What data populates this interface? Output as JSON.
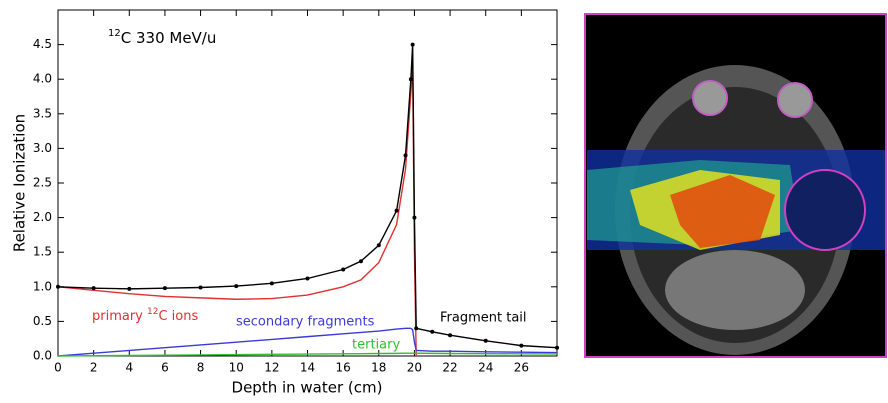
{
  "chart_data": {
    "type": "line",
    "title": {
      "sup": "12",
      "text": "C   330  MeV/u"
    },
    "x_label": "Depth in water (cm)",
    "y_label": "Relative Ionization",
    "x": [
      0,
      2,
      4,
      6,
      8,
      10,
      12,
      14,
      16,
      17,
      18,
      19,
      19.5,
      19.8,
      19.9,
      20.0,
      20.1,
      21,
      22,
      24,
      26,
      28
    ],
    "series": [
      {
        "name": "primary",
        "label": {
          "pre": "primary ",
          "sup": "12",
          "text": "C ions"
        },
        "color": "#e03030",
        "values": [
          1.0,
          0.95,
          0.9,
          0.86,
          0.84,
          0.82,
          0.83,
          0.88,
          1.0,
          1.1,
          1.35,
          1.9,
          2.7,
          3.8,
          4.2,
          1.5,
          0,
          null,
          null,
          null,
          null,
          null
        ]
      },
      {
        "name": "secondary fragments",
        "color": "#3a3ad8",
        "values": [
          0,
          0.04,
          0.08,
          0.12,
          0.16,
          0.2,
          0.24,
          0.28,
          0.32,
          0.34,
          0.36,
          0.39,
          0.4,
          0.4,
          0.38,
          0.2,
          0.08,
          0.07,
          0.07,
          0.06,
          0.055,
          0.05
        ]
      },
      {
        "name": "tertiary",
        "color": "#30c030",
        "values": [
          0,
          0.004,
          0.008,
          0.012,
          0.016,
          0.02,
          0.024,
          0.028,
          0.032,
          0.034,
          0.036,
          0.038,
          0.04,
          0.04,
          0.04,
          0.04,
          0.04,
          0.038,
          0.036,
          0.034,
          0.032,
          0.03
        ]
      },
      {
        "name": "Fragment tail",
        "color": "#000000",
        "markers": true,
        "values": [
          1.0,
          0.98,
          0.97,
          0.98,
          0.99,
          1.01,
          1.05,
          1.12,
          1.25,
          1.37,
          1.6,
          2.1,
          2.9,
          4.0,
          4.5,
          2.0,
          0.4,
          0.35,
          0.3,
          0.22,
          0.15,
          0.12
        ]
      }
    ],
    "xlim": [
      0,
      28
    ],
    "xticks": [
      0,
      2,
      4,
      6,
      8,
      10,
      12,
      14,
      16,
      18,
      20,
      22,
      24,
      26
    ],
    "ylim": [
      0,
      5
    ],
    "yticks": [
      {
        "value": 0,
        "label": "0.0"
      },
      {
        "value": 0.5,
        "label": "0.5"
      },
      {
        "value": 1,
        "label": "1.0"
      },
      {
        "value": 1.5,
        "label": "1.5"
      },
      {
        "value": 2,
        "label": "2.0"
      },
      {
        "value": 2.5,
        "label": "2.5"
      },
      {
        "value": 3,
        "label": "3.0"
      },
      {
        "value": 3.5,
        "label": "3.5"
      },
      {
        "value": 4,
        "label": "4.0"
      },
      {
        "value": 4.5,
        "label": "4.5"
      }
    ]
  }
}
